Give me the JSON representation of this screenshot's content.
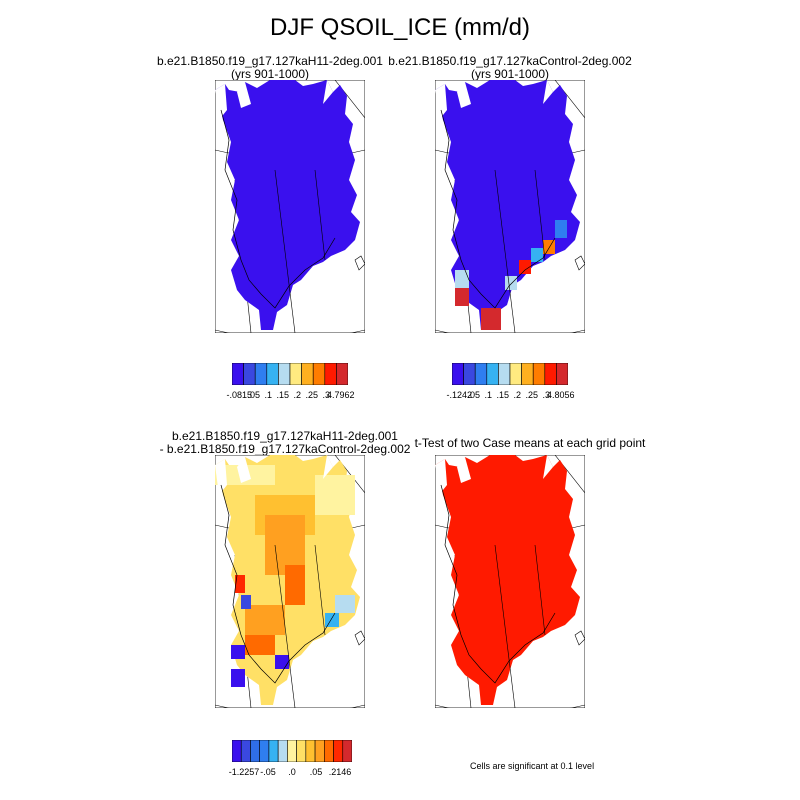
{
  "figure": {
    "title": "DJF QSOIL_ICE (mm/d)"
  },
  "panels": [
    {
      "id": "case",
      "title_line1": "b.e21.B1850.f19_g17.127kaH11-2deg.001",
      "title_line2": "(yrs 901-1000)",
      "fill": "dominant-blue"
    },
    {
      "id": "control",
      "title_line1": "b.e21.B1850.f19_g17.127kaControl-2deg.002",
      "title_line2": "(yrs 901-1000)",
      "fill": "blue-with-warm-south"
    },
    {
      "id": "difference",
      "title_line1": "b.e21.B1850.f19_g17.127kaH11-2deg.001",
      "title_line2": "- b.e21.B1850.f19_g17.127kaControl-2deg.002",
      "fill": "yellow-orange-field"
    },
    {
      "id": "ttest",
      "title_line1": "t-Test of two Case means at each grid point",
      "title_line2": "",
      "fill": "all-red"
    }
  ],
  "colorbars": [
    {
      "id": "cb-case",
      "labels": [
        "-.0815",
        ".05",
        ".1",
        ".15",
        ".2",
        ".25",
        ".3",
        "4.7962"
      ],
      "colors": [
        "#3a10ee",
        "#3a48e0",
        "#2f7ef0",
        "#36b2f2",
        "#b6dcf0",
        "#ffea80",
        "#ffb020",
        "#ff7d00",
        "#ff1a00",
        "#d4292d"
      ]
    },
    {
      "id": "cb-control",
      "labels": [
        "-.1242",
        ".05",
        ".1",
        ".15",
        ".2",
        ".25",
        ".3",
        "4.8056"
      ],
      "colors": [
        "#3a10ee",
        "#3a48e0",
        "#2f7ef0",
        "#36b2f2",
        "#b6dcf0",
        "#ffea80",
        "#ffb020",
        "#ff7d00",
        "#ff1a00",
        "#d4292d"
      ]
    },
    {
      "id": "cb-diff",
      "labels": [
        "-1.2257",
        "-.05",
        ".0",
        ".05",
        ".2146"
      ],
      "colors": [
        "#3a10ee",
        "#3a48e0",
        "#2f6ee8",
        "#2f7ef0",
        "#36b2f2",
        "#b6dcf0",
        "#fff3a0",
        "#ffe066",
        "#ffc030",
        "#ffa020",
        "#ff6a00",
        "#ff2800",
        "#d4292d"
      ]
    }
  ],
  "note": "Cells are significant at 0.1 level"
}
